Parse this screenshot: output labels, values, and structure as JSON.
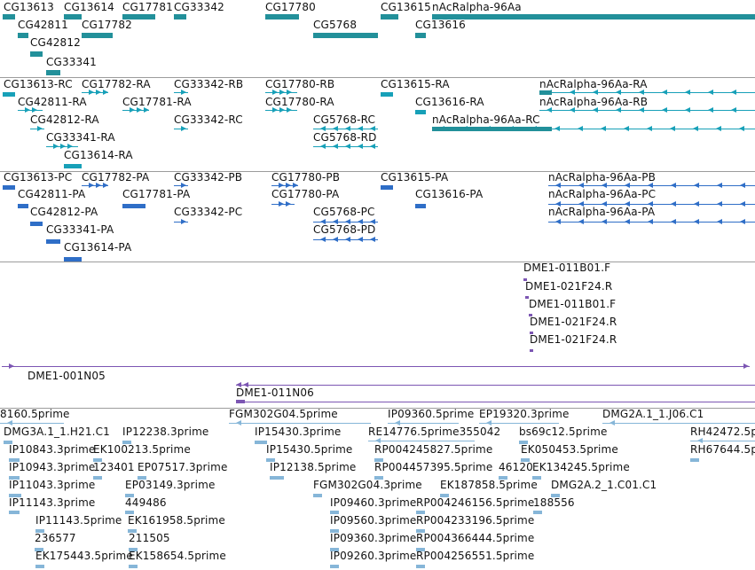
{
  "colors": {
    "gene": "#22909a",
    "transcript": "#17a0b8",
    "protein": "#2f6ec7",
    "bac": "#7c56b3",
    "est": "#86b6d8",
    "divider": "#9c9c9c"
  },
  "tracks": [
    {
      "name": "gene",
      "labels": [
        "CG13613",
        "CG13614",
        "CG17781",
        "CG33342",
        "CG17780",
        "CG13615",
        "nAcRalpha-96Aa",
        "CG42811",
        "CG17782",
        "CG5768",
        "CG13616",
        "CG42812",
        "CG33341"
      ]
    },
    {
      "name": "transcript",
      "labels": [
        "CG13613-RC",
        "CG17782-RA",
        "CG33342-RB",
        "CG17780-RB",
        "CG13615-RA",
        "nAcRalpha-96Aa-RA",
        "CG42811-RA",
        "CG17781-RA",
        "CG17780-RA",
        "CG13616-RA",
        "nAcRalpha-96Aa-RB",
        "CG42812-RA",
        "CG33342-RC",
        "CG5768-RC",
        "nAcRalpha-96Aa-RC",
        "CG33341-RA",
        "CG5768-RD",
        "CG13614-RA"
      ]
    },
    {
      "name": "protein",
      "labels": [
        "CG13613-PC",
        "CG17782-PA",
        "CG33342-PB",
        "CG17780-PB",
        "CG13615-PA",
        "nAcRalpha-96Aa-PB",
        "CG42811-PA",
        "CG17781-PA",
        "CG17780-PA",
        "CG13616-PA",
        "nAcRalpha-96Aa-PC",
        "CG42812-PA",
        "CG33342-PC",
        "CG5768-PC",
        "nAcRalpha-96Aa-PA",
        "CG33341-PA",
        "CG5768-PD",
        "CG13614-PA"
      ]
    },
    {
      "name": "bac",
      "labels": [
        "DME1-011B01.F",
        "DME1-021F24.R",
        "DME1-011B01.F",
        "DME1-021F24.R",
        "DME1-021F24.R",
        "DME1-001N05",
        "DME1-011N06"
      ]
    },
    {
      "name": "est",
      "labels": [
        "8160.5prime",
        "FGM302G04.5prime",
        "IP09360.5prime",
        "EP19320.3prime",
        "DMG2A.1_1.J06.C1",
        "DMG3A.1_1.H21.C1",
        "IP12238.3prime",
        "IP15430.3prime",
        "RE14776.5prime355042",
        "bs69c12.5prime",
        "RH42472.5p",
        "IP10843.3prime",
        "EK100213.5prime",
        "IP15430.5prime",
        "RP004245827.5prime",
        "EK050453.5prime",
        "RH67644.5p",
        "IP10943.3prime",
        "123401",
        "EP07517.3prime",
        "IP12138.5prime",
        "RP004457395.5prime",
        "46120",
        "EK134245.5prime",
        "IP11043.3prime",
        "EP03149.3prime",
        "FGM302G04.3prime",
        "EK187858.5prime",
        "DMG2A.2_1.C01.C1",
        "IP11143.3prime",
        "449486",
        "IP09460.3prime",
        "RP004246156.5prime",
        "188556",
        "IP11143.5prime",
        "EK161958.5prime",
        "IP09560.3prime",
        "RP004233196.5prime",
        "236577",
        "211505",
        "IP09360.3prime",
        "RP004366444.5prime",
        "EK175443.5prime",
        "EK158654.5prime",
        "IP09260.3prime",
        "RP004256551.5prime"
      ]
    }
  ]
}
